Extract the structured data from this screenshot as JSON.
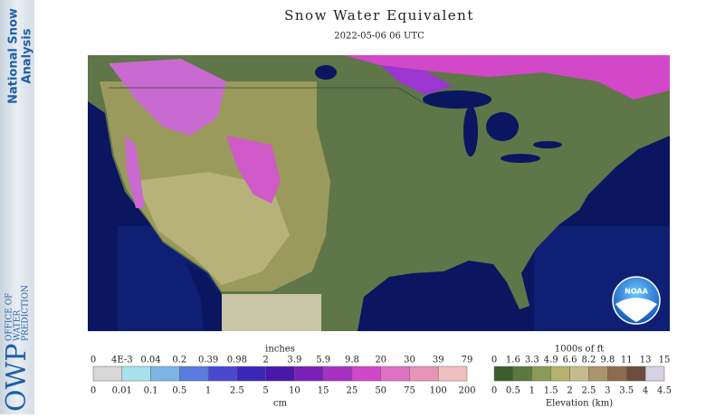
{
  "sidebar": {
    "product": [
      "National Snow",
      "Analysis"
    ],
    "org_short": "OWP",
    "org_long": [
      "OFFICE OF",
      "WATER",
      "PREDICTION"
    ]
  },
  "header": {
    "title": "Snow Water Equivalent",
    "subtitle": "2022-05-06 06 UTC"
  },
  "logo": {
    "text": "NOAA"
  },
  "legend_swe": {
    "top_unit": "inches",
    "top_labels": [
      "0",
      "4E-3",
      "0.04",
      "0.2",
      "0.39",
      "0.98",
      "2",
      "3.9",
      "5.9",
      "9.8",
      "20",
      "30",
      "39",
      "79"
    ],
    "bottom_labels": [
      "0",
      "0.01",
      "0.1",
      "0.5",
      "1",
      "2.5",
      "5",
      "10",
      "15",
      "25",
      "50",
      "75",
      "100",
      "200"
    ],
    "bottom_unit": "cm"
  },
  "legend_elev": {
    "top_unit": "1000s of ft",
    "top_labels": [
      "0",
      "1.6",
      "3.3",
      "4.9",
      "6.6",
      "8.2",
      "9.8",
      "11",
      "13",
      "15"
    ],
    "bottom_labels": [
      "0",
      "0.5",
      "1",
      "1.5",
      "2",
      "2.5",
      "3",
      "3.5",
      "4",
      "4.5"
    ],
    "bottom_unit": "Elevation (km)"
  }
}
